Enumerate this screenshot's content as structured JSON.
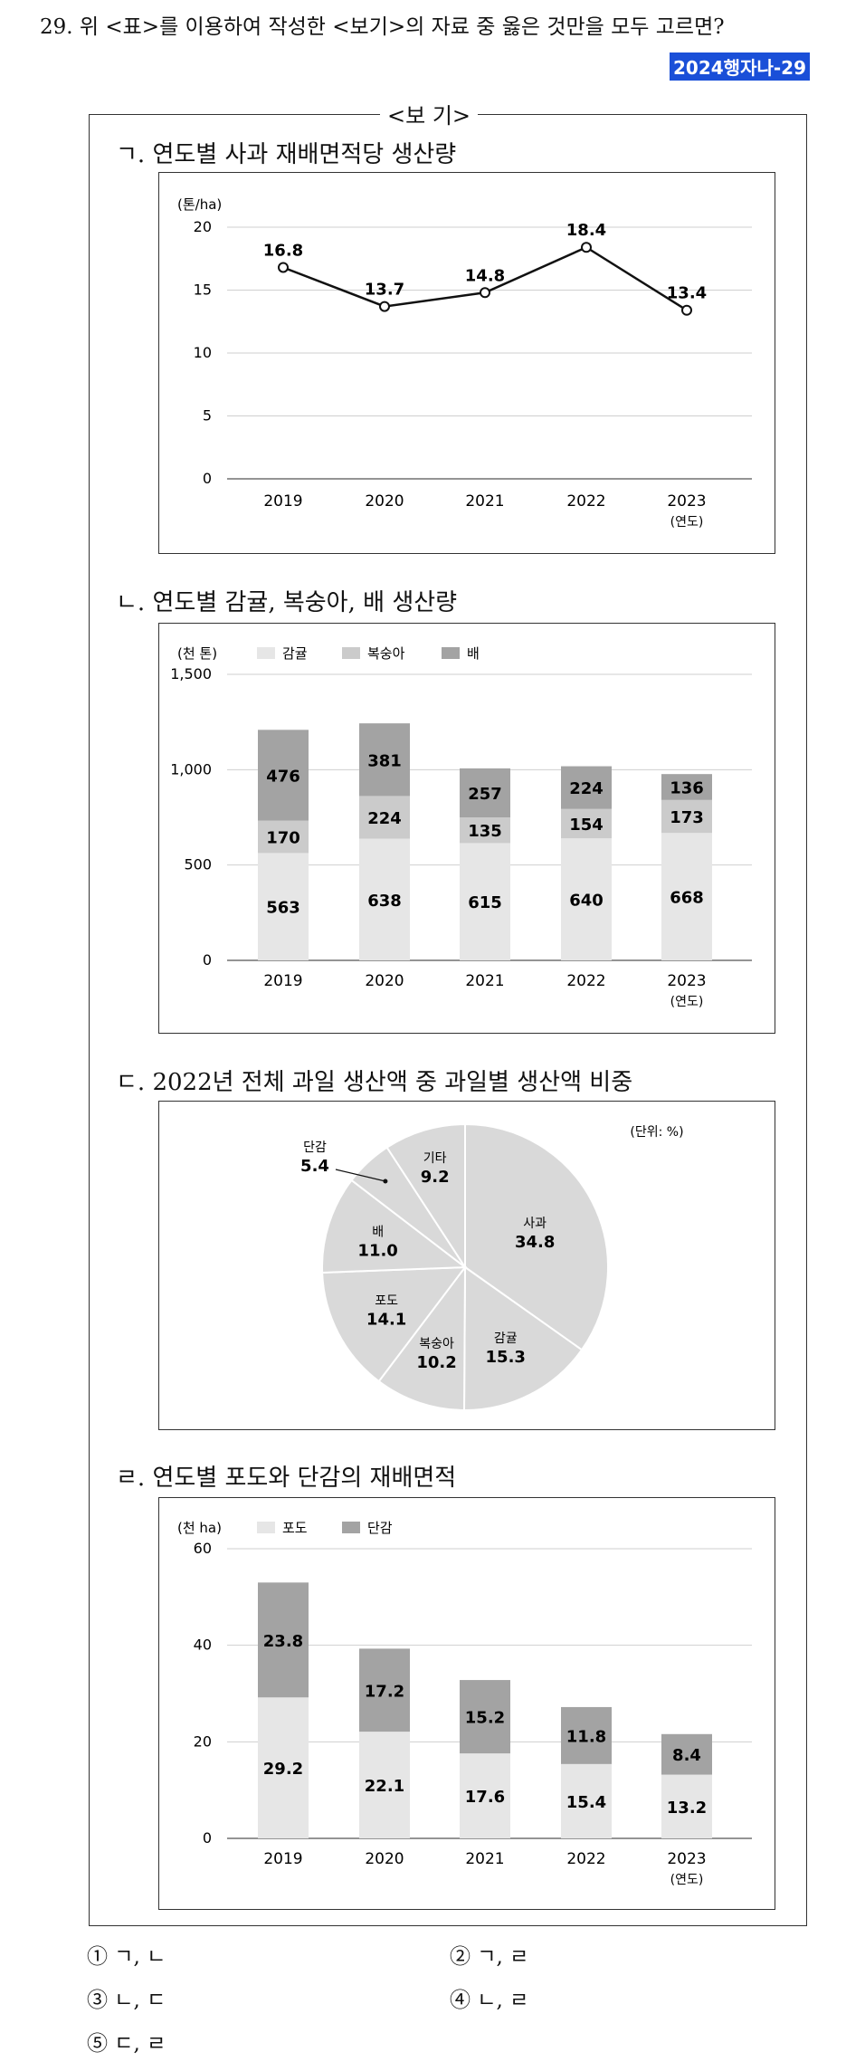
{
  "question": "29. 위 <표>를 이용하여 작성한 <보기>의 자료 중 옳은 것만을 모두 고르면?",
  "tag": "2024행자나-29",
  "bogi_title": "<보 기>",
  "sections": {
    "a": {
      "label": "ㄱ. 연도별 사과 재배면적당 생산량"
    },
    "b": {
      "label": "ㄴ. 연도별 감귤, 복숭아, 배 생산량"
    },
    "c": {
      "label": "ㄷ. 2022년 전체 과일 생산액 중 과일별 생산액 비중"
    },
    "d": {
      "label": "ㄹ. 연도별 포도와 단감의 재배면적"
    }
  },
  "chart_data": [
    {
      "type": "line",
      "unit": "(톤/ha)",
      "x": [
        "2019",
        "2020",
        "2021",
        "2022",
        "2023"
      ],
      "x_unit": "(연도)",
      "values": [
        16.8,
        13.7,
        14.8,
        18.4,
        13.4
      ],
      "data_labels": [
        "16.8",
        "13.7",
        "14.8",
        "18.4",
        "13.4"
      ],
      "ylim": [
        0,
        20
      ],
      "yticks": [
        "0",
        "5",
        "10",
        "15",
        "20"
      ]
    },
    {
      "type": "bar",
      "stacked": true,
      "unit": "(천 톤)",
      "categories": [
        "2019",
        "2020",
        "2021",
        "2022",
        "2023"
      ],
      "x_unit": "(연도)",
      "series": [
        {
          "name": "감귤",
          "values": [
            563,
            638,
            615,
            640,
            668
          ],
          "color": "#e6e6e6"
        },
        {
          "name": "복숭아",
          "values": [
            170,
            224,
            135,
            154,
            173
          ],
          "color": "#cbcbcb"
        },
        {
          "name": "배",
          "values": [
            476,
            381,
            257,
            224,
            136
          ],
          "color": "#a3a3a3"
        }
      ],
      "ylim": [
        0,
        1500
      ],
      "yticks": [
        "0",
        "500",
        "1,000",
        "1,500"
      ]
    },
    {
      "type": "pie",
      "unit": "(단위: %)",
      "slices": [
        {
          "name": "사과",
          "value": 34.8,
          "label": "34.8"
        },
        {
          "name": "감귤",
          "value": 15.3,
          "label": "15.3"
        },
        {
          "name": "복숭아",
          "value": 10.2,
          "label": "10.2"
        },
        {
          "name": "포도",
          "value": 14.1,
          "label": "14.1"
        },
        {
          "name": "배",
          "value": 11.0,
          "label": "11.0"
        },
        {
          "name": "단감",
          "value": 5.4,
          "label": "5.4"
        },
        {
          "name": "기타",
          "value": 9.2,
          "label": "9.2"
        }
      ],
      "color": "#d9d9d9"
    },
    {
      "type": "bar",
      "stacked": true,
      "unit": "(천 ha)",
      "categories": [
        "2019",
        "2020",
        "2021",
        "2022",
        "2023"
      ],
      "x_unit": "(연도)",
      "series": [
        {
          "name": "포도",
          "values": [
            29.2,
            22.1,
            17.6,
            15.4,
            13.2
          ],
          "color": "#e6e6e6"
        },
        {
          "name": "단감",
          "values": [
            23.8,
            17.2,
            15.2,
            11.8,
            8.4
          ],
          "color": "#a3a3a3"
        }
      ],
      "ylim": [
        0,
        60
      ],
      "yticks": [
        "0",
        "20",
        "40",
        "60"
      ]
    }
  ],
  "choices": [
    "① ㄱ, ㄴ",
    "② ㄱ, ㄹ",
    "③ ㄴ, ㄷ",
    "④ ㄴ, ㄹ",
    "⑤ ㄷ, ㄹ"
  ]
}
